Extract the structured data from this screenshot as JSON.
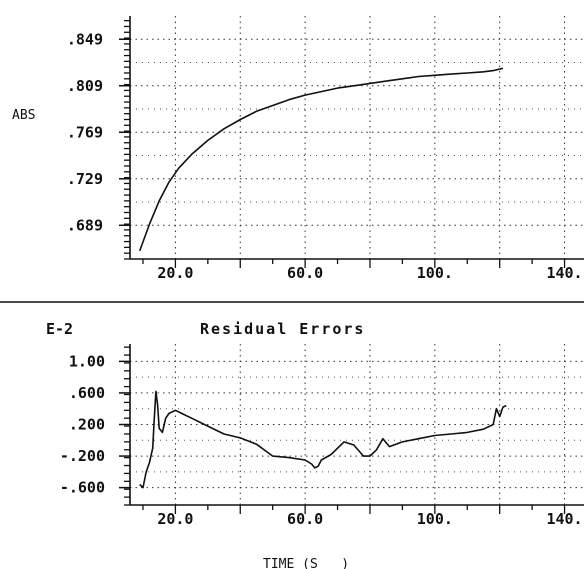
{
  "chart_data": [
    {
      "type": "line",
      "title": "",
      "ylabel": "ABS",
      "xlabel": "",
      "xlim": [
        6,
        146
      ],
      "ylim": [
        0.66,
        0.869
      ],
      "xticks": [
        20,
        60,
        100,
        140
      ],
      "xtick_labels": [
        "20.0",
        "60.0",
        "100.",
        "140."
      ],
      "yticks": [
        0.689,
        0.729,
        0.769,
        0.809,
        0.849
      ],
      "ytick_labels": [
        ".689",
        ".729",
        ".769",
        ".809",
        ".849"
      ],
      "grid": true,
      "series": [
        {
          "x": [
            9,
            12,
            15,
            18,
            21,
            25,
            30,
            35,
            40,
            45,
            50,
            55,
            60,
            65,
            70,
            75,
            80,
            85,
            90,
            95,
            100,
            105,
            110,
            115,
            118,
            121
          ],
          "y": [
            0.667,
            0.69,
            0.71,
            0.726,
            0.738,
            0.75,
            0.762,
            0.772,
            0.78,
            0.787,
            0.792,
            0.797,
            0.801,
            0.804,
            0.807,
            0.809,
            0.811,
            0.813,
            0.815,
            0.817,
            0.818,
            0.819,
            0.82,
            0.821,
            0.822,
            0.824
          ]
        }
      ]
    },
    {
      "type": "line",
      "title": "Residual Errors",
      "ylabel": "E-2",
      "xlabel": "TIME (S   )",
      "xlim": [
        6,
        146
      ],
      "ylim": [
        -0.82,
        1.22
      ],
      "xticks": [
        20,
        60,
        100,
        140
      ],
      "xtick_labels": [
        "20.0",
        "60.0",
        "100.",
        "140."
      ],
      "yticks": [
        -0.6,
        -0.2,
        0.2,
        0.6,
        1.0
      ],
      "ytick_labels": [
        "-.600",
        "-.200",
        ".200",
        ".600",
        "1.00"
      ],
      "grid": true,
      "series": [
        {
          "x": [
            9,
            10,
            11,
            12,
            13,
            13.5,
            14,
            14.5,
            15,
            16,
            17,
            18,
            20,
            22,
            25,
            30,
            35,
            40,
            45,
            50,
            55,
            60,
            62,
            63,
            64,
            65,
            68,
            72,
            75,
            78,
            80,
            82,
            84,
            86,
            90,
            95,
            100,
            105,
            110,
            115,
            118,
            119,
            120,
            121,
            122
          ],
          "y": [
            -0.56,
            -0.6,
            -0.4,
            -0.28,
            -0.1,
            0.28,
            0.62,
            0.45,
            0.15,
            0.1,
            0.28,
            0.34,
            0.38,
            0.34,
            0.28,
            0.18,
            0.08,
            0.03,
            -0.05,
            -0.2,
            -0.22,
            -0.25,
            -0.3,
            -0.35,
            -0.33,
            -0.25,
            -0.18,
            -0.02,
            -0.06,
            -0.2,
            -0.2,
            -0.12,
            0.02,
            -0.08,
            -0.02,
            0.02,
            0.06,
            0.08,
            0.1,
            0.14,
            0.2,
            0.4,
            0.3,
            0.42,
            0.44
          ]
        }
      ]
    }
  ]
}
